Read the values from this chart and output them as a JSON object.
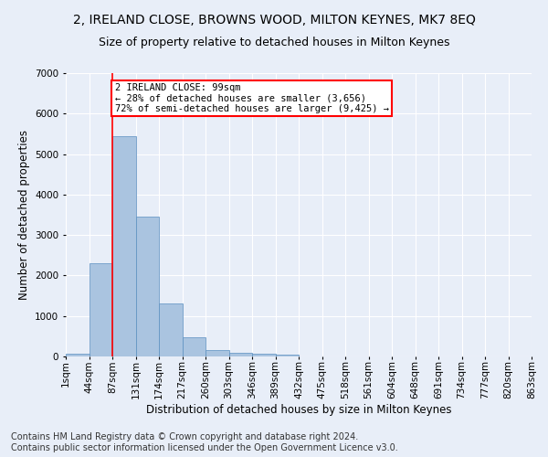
{
  "title": "2, IRELAND CLOSE, BROWNS WOOD, MILTON KEYNES, MK7 8EQ",
  "subtitle": "Size of property relative to detached houses in Milton Keynes",
  "xlabel": "Distribution of detached houses by size in Milton Keynes",
  "ylabel": "Number of detached properties",
  "footer_line1": "Contains HM Land Registry data © Crown copyright and database right 2024.",
  "footer_line2": "Contains public sector information licensed under the Open Government Licence v3.0.",
  "bin_labels": [
    "1sqm",
    "44sqm",
    "87sqm",
    "131sqm",
    "174sqm",
    "217sqm",
    "260sqm",
    "303sqm",
    "346sqm",
    "389sqm",
    "432sqm",
    "475sqm",
    "518sqm",
    "561sqm",
    "604sqm",
    "648sqm",
    "691sqm",
    "734sqm",
    "777sqm",
    "820sqm",
    "863sqm"
  ],
  "bar_values": [
    75,
    2300,
    5450,
    3450,
    1310,
    470,
    155,
    90,
    65,
    45,
    0,
    0,
    0,
    0,
    0,
    0,
    0,
    0,
    0,
    0
  ],
  "bar_color": "#aac4e0",
  "bar_edge_color": "#5a8fc0",
  "vline_x": 2.0,
  "vline_color": "red",
  "annotation_text": "2 IRELAND CLOSE: 99sqm\n← 28% of detached houses are smaller (3,656)\n72% of semi-detached houses are larger (9,425) →",
  "annotation_box_color": "white",
  "annotation_box_edge": "red",
  "ylim": [
    0,
    7000
  ],
  "yticks": [
    0,
    1000,
    2000,
    3000,
    4000,
    5000,
    6000,
    7000
  ],
  "background_color": "#e8eef8",
  "grid_color": "white",
  "title_fontsize": 10,
  "subtitle_fontsize": 9,
  "axis_label_fontsize": 8.5,
  "tick_fontsize": 7.5,
  "annotation_fontsize": 7.5,
  "footer_fontsize": 7
}
